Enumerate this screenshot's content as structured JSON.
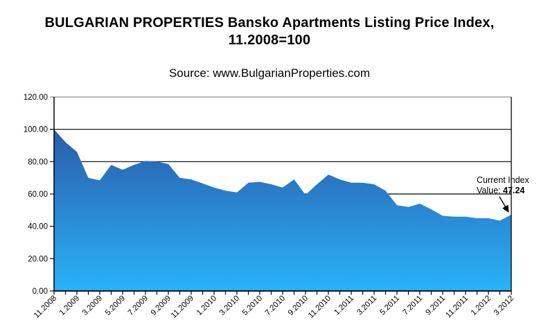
{
  "page": {
    "title_line1": "BULGARIAN PROPERTIES Bansko Apartments Listing Price Index,",
    "title_line2": "11.2008=100",
    "subtitle": "Source: www.BulgarianProperties.com"
  },
  "chart_data": {
    "type": "area",
    "title": "BULGARIAN PROPERTIES Bansko Apartments Listing Price Index, 11.2008=100",
    "subtitle": "Source: www.BulgarianProperties.com",
    "categories": [
      "11.2008",
      "12.2008",
      "1.2009",
      "2.2009",
      "3.2009",
      "4.2009",
      "5.2009",
      "6.2009",
      "7.2009",
      "8.2009",
      "9.2009",
      "10.2009",
      "11.2009",
      "12.2009",
      "1.2010",
      "2.2010",
      "3.2010",
      "4.2010",
      "5.2010",
      "6.2010",
      "7.2010",
      "8.2010",
      "9.2010",
      "10.2010",
      "11.2010",
      "12.2010",
      "1.2011",
      "2.2011",
      "3.2011",
      "4.2011",
      "5.2011",
      "6.2011",
      "7.2011",
      "8.2011",
      "9.2011",
      "10.2011",
      "11.2011",
      "12.2011",
      "1.2012",
      "2.2012",
      "3.2012"
    ],
    "values": [
      100,
      92,
      86,
      70,
      68.5,
      78,
      75,
      78,
      80.5,
      80,
      78.5,
      70,
      69,
      66.5,
      64,
      62,
      61,
      67,
      67.5,
      66,
      64,
      69,
      59.5,
      66,
      72,
      69,
      67,
      67,
      66,
      62,
      53,
      52,
      54,
      50.5,
      46.5,
      46,
      46,
      45,
      45,
      43.5,
      47.24
    ],
    "x_axis_labels_shown": [
      "11.2008",
      "1.2009",
      "3.2009",
      "5.2009",
      "7.2009",
      "9.2009",
      "11.2009",
      "1.2010",
      "3.2010",
      "5.2010",
      "7.2010",
      "9.2010",
      "11.2010",
      "1.2011",
      "3.2011",
      "5.2011",
      "7.2011",
      "9.2011",
      "11.2011",
      "1.2012",
      "3.2012"
    ],
    "label_every_n_points": 2,
    "ylim": [
      0,
      120
    ],
    "ytick_step": 20,
    "ytick_decimals": 2,
    "grid": true,
    "legend": "none",
    "annotation": {
      "line1": "Current Index",
      "line2_prefix": "Value: ",
      "value": "47.24"
    },
    "colors": {
      "area_top": "#2b5caa",
      "area_bottom": "#29b2f8",
      "grid": "#000000",
      "frame_top": "#8c8c8c",
      "axis": "#000000",
      "text": "#000000"
    }
  }
}
